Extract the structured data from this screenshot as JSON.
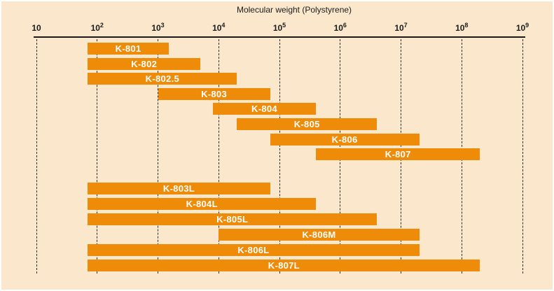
{
  "colors": {
    "background": "#fae7cc",
    "bar": "#ee8c0a",
    "bar_label": "#ffffff",
    "axis": "#1a1a1a",
    "gridline": "#2e2e2e"
  },
  "chart_data": {
    "type": "bar",
    "variant": "horizontal-range-log",
    "title": "Molecular weight (Polystyrene)",
    "xlabel": "Molecular weight (Polystyrene)",
    "x_scale": "log10",
    "xlim": [
      10,
      1000000000
    ],
    "grid": "dashed-vertical",
    "x_axis": {
      "tick_exponents": [
        1,
        2,
        3,
        4,
        5,
        6,
        7,
        8,
        9
      ],
      "tick_labels": [
        "10",
        "10²",
        "10³",
        "10⁴",
        "10⁵",
        "10⁶",
        "10⁷",
        "10⁸",
        "10⁹"
      ]
    },
    "series": [
      {
        "label": "K-801",
        "mw_range": [
          70,
          1500
        ],
        "group": 1
      },
      {
        "label": "K-802",
        "mw_range": [
          70,
          5000
        ],
        "group": 1
      },
      {
        "label": "K-802.5",
        "mw_range": [
          70,
          20000
        ],
        "group": 1
      },
      {
        "label": "K-803",
        "mw_range": [
          1000,
          70000
        ],
        "group": 1
      },
      {
        "label": "K-804",
        "mw_range": [
          8000,
          400000
        ],
        "group": 1
      },
      {
        "label": "K-805",
        "mw_range": [
          20000,
          4000000
        ],
        "group": 1
      },
      {
        "label": "K-806",
        "mw_range": [
          70000,
          20000000
        ],
        "group": 1
      },
      {
        "label": "K-807",
        "mw_range": [
          400000,
          200000000
        ],
        "group": 1
      },
      {
        "label": "K-803L",
        "mw_range": [
          70,
          70000
        ],
        "group": 2
      },
      {
        "label": "K-804L",
        "mw_range": [
          70,
          400000
        ],
        "group": 2
      },
      {
        "label": "K-805L",
        "mw_range": [
          70,
          4000000
        ],
        "group": 2
      },
      {
        "label": "K-806M",
        "mw_range": [
          10000,
          20000000
        ],
        "group": 2
      },
      {
        "label": "K-806L",
        "mw_range": [
          70,
          20000000
        ],
        "group": 2
      },
      {
        "label": "K-807L",
        "mw_range": [
          70,
          200000000
        ],
        "group": 2
      }
    ]
  }
}
